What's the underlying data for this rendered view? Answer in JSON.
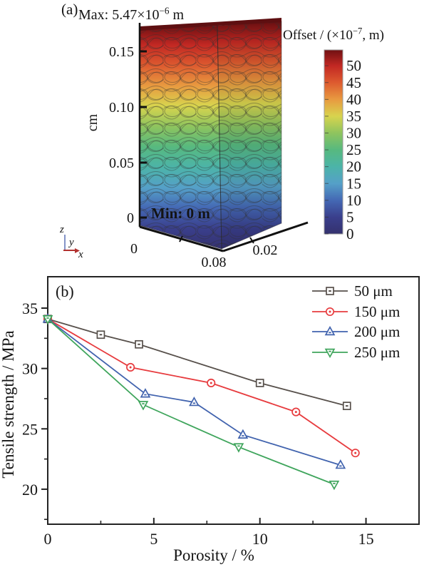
{
  "figure": {
    "background": "#ffffff"
  },
  "chart_data": [
    {
      "type": "heatmap",
      "panel": "(a)",
      "description": "3D simulated displacement (offset) field of a porous fiber scaffold block; rainbow colormap from maximum (dark red, top) to 0 (dark blue, bottom)",
      "max_annotation": {
        "prefix": "Max: 5.47×10",
        "sup": "−6",
        "suffix": " m"
      },
      "min_annotation": "Min: 0 m",
      "vertical_axis": {
        "unit": "cm",
        "ticks": [
          "0.15",
          "0.10",
          "0.05",
          "0"
        ]
      },
      "base_axis_labels": [
        "0",
        "0.08",
        "0.02"
      ],
      "triad_labels": {
        "z": "z",
        "y": "y",
        "x": "x"
      },
      "colorbar": {
        "title": {
          "prefix": "Offset / (×10",
          "sup": "−7",
          "suffix": ", m)"
        },
        "ticks": [
          50,
          45,
          40,
          35,
          30,
          25,
          20,
          15,
          10,
          5,
          0
        ],
        "max_value": 54.7,
        "gradient_top_to_bottom": [
          "#701012",
          "#c22823",
          "#dd5a2f",
          "#e89a40",
          "#d8d44e",
          "#8ec45e",
          "#57b97f",
          "#4cb4a8",
          "#55a0c8",
          "#4468b4",
          "#3a3f8c",
          "#34316e"
        ]
      }
    },
    {
      "type": "line",
      "panel": "(b)",
      "xlabel": "Porosity / %",
      "ylabel": "Tensile strength / MPa",
      "xlim": [
        0,
        17.5
      ],
      "ylim": [
        17.1,
        37.6
      ],
      "x_ticks": [
        0,
        5,
        10,
        15
      ],
      "x_minor_ticks": [
        2.5,
        7.5,
        12.5
      ],
      "y_ticks": [
        20,
        25,
        30,
        35
      ],
      "y_minor_ticks": [
        17.5,
        22.5,
        27.5,
        32.5
      ],
      "grid": false,
      "legend_position": "top-right",
      "series": [
        {
          "name": "50 μm",
          "color": "#57504b",
          "marker": "square",
          "points": [
            [
              0,
              34.1
            ],
            [
              2.5,
              32.8
            ],
            [
              4.3,
              32.0
            ],
            [
              10.0,
              28.8
            ],
            [
              14.1,
              26.9
            ]
          ]
        },
        {
          "name": "150 μm",
          "color": "#e73b3e",
          "marker": "circle",
          "points": [
            [
              0,
              34.1
            ],
            [
              3.9,
              30.1
            ],
            [
              7.7,
              28.8
            ],
            [
              11.7,
              26.4
            ],
            [
              14.5,
              23.0
            ]
          ]
        },
        {
          "name": "200 μm",
          "color": "#4163ae",
          "marker": "triangle-up",
          "points": [
            [
              0,
              34.1
            ],
            [
              4.6,
              27.9
            ],
            [
              6.9,
              27.2
            ],
            [
              9.2,
              24.5
            ],
            [
              13.8,
              22.0
            ]
          ]
        },
        {
          "name": "250 μm",
          "color": "#3fa55c",
          "marker": "triangle-down",
          "points": [
            [
              0,
              34.1
            ],
            [
              4.5,
              27.0
            ],
            [
              9.0,
              23.5
            ],
            [
              13.5,
              20.4
            ]
          ]
        }
      ]
    }
  ]
}
